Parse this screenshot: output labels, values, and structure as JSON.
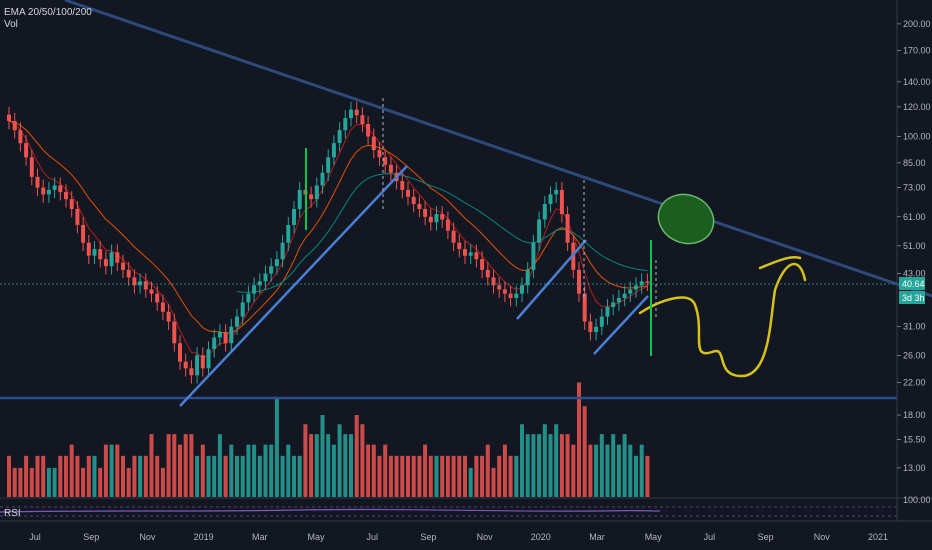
{
  "legend": {
    "indicator": "EMA 20/50/100/200",
    "volume": "Vol"
  },
  "rsi_label": "RSI",
  "last_price": {
    "value": "40.64",
    "countdown": "3d 3h"
  },
  "colors": {
    "background": "#131722",
    "up": "#26a69a",
    "down": "#ef5350",
    "trendline": "#2e4a7d",
    "support": "#2b4f8f",
    "channel": "#4a7fd4",
    "ema20": "#b71c1c",
    "ema50": "#e65100",
    "ema100": "#00897b",
    "highlight_fill": "#1b5e20",
    "highlight_stroke": "#66bb6a",
    "scribble": "#d4c21a",
    "marker": "#00c853",
    "rsi": "#7e57c2"
  },
  "chart_data": {
    "type": "candlestick",
    "scale": "log",
    "ylim": [
      11,
      210
    ],
    "y_ticks": [
      "200.00",
      "170.00",
      "140.00",
      "120.00",
      "100.00",
      "85.00",
      "73.00",
      "61.00",
      "51.00",
      "43.00",
      "31.00",
      "26.00",
      "22.00",
      "18.00",
      "15.50",
      "13.00"
    ],
    "rsi_tick": "100.00",
    "x_ticks": [
      "Jul",
      "Sep",
      "Nov",
      "2019",
      "Mar",
      "May",
      "Jul",
      "Sep",
      "Nov",
      "2020",
      "Mar",
      "May",
      "Jul",
      "Sep",
      "Nov",
      "2021"
    ],
    "closes": [
      110,
      104,
      96,
      88,
      78,
      73,
      70,
      72,
      74,
      71,
      68,
      64,
      58,
      52,
      48,
      50,
      47,
      45,
      49,
      46,
      44,
      42,
      40,
      41,
      39,
      38,
      36,
      34,
      32,
      28,
      25,
      24,
      23,
      26,
      24,
      27,
      29,
      30,
      28,
      31,
      33,
      36,
      38,
      40,
      41,
      43,
      45,
      47,
      52,
      58,
      64,
      72,
      70,
      68,
      74,
      80,
      88,
      96,
      104,
      112,
      118,
      114,
      108,
      100,
      92,
      88,
      84,
      80,
      76,
      72,
      69,
      66,
      64,
      61,
      59,
      62,
      60,
      56,
      52,
      50,
      48,
      49,
      47,
      44,
      42,
      40,
      39,
      38,
      37,
      38,
      40,
      44,
      52,
      60,
      66,
      70,
      72,
      62,
      52,
      44,
      38,
      32,
      30,
      31,
      33,
      35,
      36,
      37,
      38,
      39,
      40,
      41,
      40.64
    ],
    "volume": [
      14,
      13,
      13,
      14,
      13,
      14,
      14,
      13,
      13,
      14,
      14,
      15,
      14,
      13,
      14,
      14,
      13,
      15,
      15,
      15,
      14,
      13,
      14,
      14,
      14,
      16,
      14,
      13,
      16,
      16,
      15,
      16,
      16,
      14,
      15,
      14,
      14,
      16,
      14,
      15,
      14,
      14,
      15,
      15,
      14,
      15,
      15,
      20,
      14,
      15,
      14,
      14,
      17,
      16,
      16,
      18,
      16,
      15,
      17,
      16,
      16,
      18,
      17,
      15,
      15,
      14,
      15,
      14,
      14,
      14,
      14,
      14,
      14,
      15,
      14,
      14,
      14,
      14,
      14,
      14,
      14,
      13,
      14,
      14,
      15,
      13,
      14,
      15,
      14,
      14,
      17,
      16,
      16,
      16,
      17,
      16,
      17,
      16,
      16,
      15,
      22,
      19,
      15,
      15,
      16,
      15,
      16,
      15,
      16,
      15,
      14,
      15,
      14
    ]
  }
}
